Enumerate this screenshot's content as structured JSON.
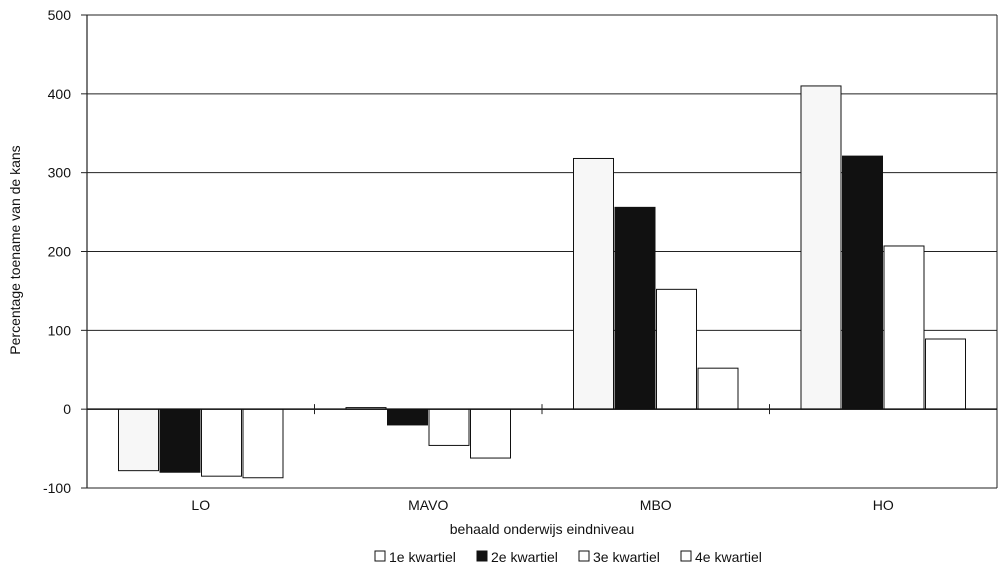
{
  "chart_data": {
    "type": "bar",
    "title": "",
    "xlabel": "behaald onderwijs eindniveau",
    "ylabel": "Percentage toename van de kans",
    "ylim": [
      -100,
      500
    ],
    "yticks": [
      -100,
      0,
      100,
      200,
      300,
      400,
      500
    ],
    "grid": true,
    "legend_position": "bottom",
    "categories": [
      "LO",
      "MAVO",
      "MBO",
      "HO"
    ],
    "series": [
      {
        "name": "1e kwartiel",
        "values": [
          -78,
          2,
          318,
          410
        ],
        "color": "#f7f7f7"
      },
      {
        "name": "2e kwartiel",
        "values": [
          -80,
          -20,
          256,
          321
        ],
        "color": "#111111"
      },
      {
        "name": "3e kwartiel",
        "values": [
          -85,
          -46,
          152,
          207
        ],
        "color": "#ffffff"
      },
      {
        "name": "4e kwartiel",
        "values": [
          -87,
          -62,
          52,
          89
        ],
        "color": "#ffffff"
      }
    ]
  }
}
